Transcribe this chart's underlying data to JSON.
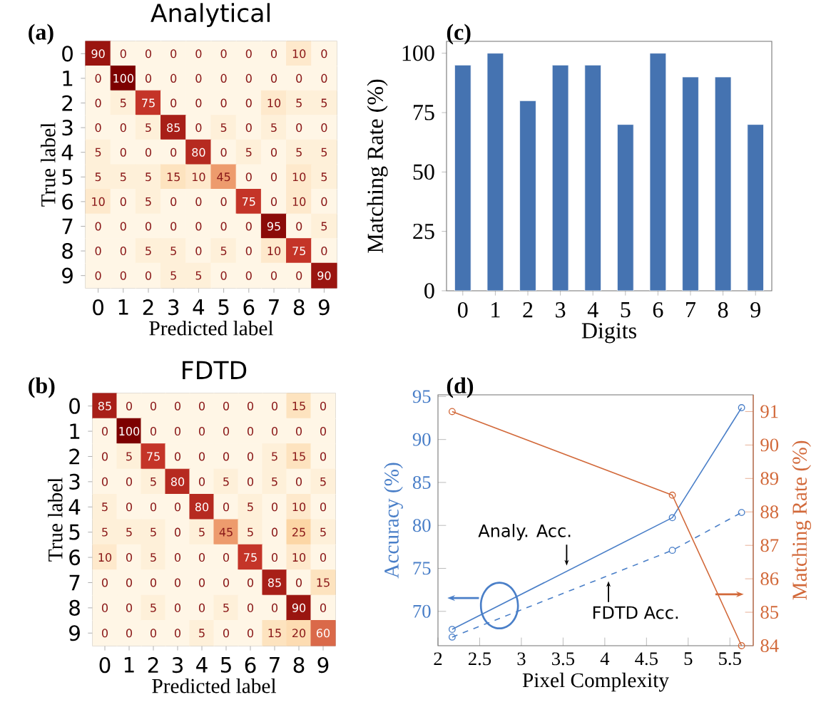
{
  "chart_data": [
    {
      "type": "heatmap",
      "title": "Analytical",
      "xlabel": "Predicted label",
      "ylabel": "True label",
      "annotations": [
        "(a)"
      ],
      "data_labels": true,
      "categories": [
        "0",
        "1",
        "2",
        "3",
        "4",
        "5",
        "6",
        "7",
        "8",
        "9"
      ],
      "y_categories": [
        "0",
        "1",
        "2",
        "3",
        "4",
        "5",
        "6",
        "7",
        "8",
        "9"
      ],
      "cells": [
        [
          90,
          0,
          0,
          0,
          0,
          0,
          0,
          0,
          10,
          0
        ],
        [
          0,
          100,
          0,
          0,
          0,
          0,
          0,
          0,
          0,
          0
        ],
        [
          0,
          5,
          75,
          0,
          0,
          0,
          0,
          10,
          5,
          5
        ],
        [
          0,
          0,
          5,
          85,
          0,
          5,
          0,
          5,
          0,
          0
        ],
        [
          5,
          0,
          0,
          0,
          80,
          0,
          5,
          0,
          5,
          5
        ],
        [
          5,
          5,
          5,
          15,
          10,
          45,
          0,
          0,
          10,
          5
        ],
        [
          10,
          0,
          5,
          0,
          0,
          0,
          75,
          0,
          10,
          0
        ],
        [
          0,
          0,
          0,
          0,
          0,
          0,
          0,
          95,
          0,
          5
        ],
        [
          0,
          0,
          5,
          5,
          0,
          5,
          0,
          10,
          75,
          0
        ],
        [
          0,
          0,
          0,
          5,
          5,
          0,
          0,
          0,
          0,
          90
        ]
      ]
    },
    {
      "type": "bar",
      "xlabel": "Digits",
      "ylabel": "Matching Rate (%)",
      "annotations": [
        "(c)"
      ],
      "color": "#4573b1",
      "categories": [
        "0",
        "1",
        "2",
        "3",
        "4",
        "5",
        "6",
        "7",
        "8",
        "9"
      ],
      "values": [
        95,
        100,
        80,
        95,
        95,
        70,
        100,
        90,
        90,
        70
      ],
      "ylim": [
        0,
        105
      ],
      "yticks": [
        0,
        25,
        50,
        75,
        100
      ]
    },
    {
      "type": "heatmap",
      "title": "FDTD",
      "xlabel": "Predicted label",
      "ylabel": "True label",
      "annotations": [
        "(b)"
      ],
      "data_labels": true,
      "categories": [
        "0",
        "1",
        "2",
        "3",
        "4",
        "5",
        "6",
        "7",
        "8",
        "9"
      ],
      "y_categories": [
        "0",
        "1",
        "2",
        "3",
        "4",
        "5",
        "6",
        "7",
        "8",
        "9"
      ],
      "cells": [
        [
          85,
          0,
          0,
          0,
          0,
          0,
          0,
          0,
          15,
          0
        ],
        [
          0,
          100,
          0,
          0,
          0,
          0,
          0,
          0,
          0,
          0
        ],
        [
          0,
          5,
          75,
          0,
          0,
          0,
          0,
          5,
          15,
          0
        ],
        [
          0,
          0,
          5,
          80,
          0,
          5,
          0,
          5,
          0,
          5
        ],
        [
          5,
          0,
          0,
          0,
          80,
          0,
          5,
          0,
          10,
          0
        ],
        [
          5,
          5,
          5,
          0,
          5,
          45,
          5,
          0,
          25,
          5
        ],
        [
          10,
          0,
          5,
          0,
          0,
          0,
          75,
          0,
          10,
          0
        ],
        [
          0,
          0,
          0,
          0,
          0,
          0,
          0,
          85,
          0,
          15
        ],
        [
          0,
          0,
          5,
          0,
          0,
          5,
          0,
          0,
          90,
          0
        ],
        [
          0,
          0,
          0,
          0,
          5,
          0,
          0,
          15,
          20,
          60
        ]
      ]
    },
    {
      "type": "line",
      "xlabel": "Pixel Complexity",
      "ylabel": "Accuracy (%)",
      "y2label": "Matching Rate (%)",
      "annotations": [
        "(d)"
      ],
      "marker": "circle",
      "x": [
        2.17,
        4.81,
        5.64
      ],
      "xlim": [
        2,
        5.78
      ],
      "xticks": [
        2,
        2.5,
        3,
        3.5,
        4,
        4.5,
        5,
        5.5
      ],
      "ylim": [
        66,
        95.2
      ],
      "yticks": [
        70,
        75,
        80,
        85,
        90,
        95
      ],
      "y2lim": [
        84,
        91.5
      ],
      "y2ticks": [
        84,
        85,
        86,
        87,
        88,
        89,
        90,
        91
      ],
      "series": [
        {
          "name": "Analy. Acc.",
          "color": "#4a7fc8",
          "line_style": "solid",
          "values": [
            67.9,
            80.9,
            93.7
          ]
        },
        {
          "name": "FDTD Acc.",
          "color": "#4a7fc8",
          "line_style": "dashed",
          "values": [
            67.0,
            77.1,
            81.5
          ]
        },
        {
          "color": "#d2693a",
          "line_style": "solid",
          "axis": "y2",
          "values": [
            91,
            88.5,
            84
          ]
        }
      ]
    }
  ]
}
